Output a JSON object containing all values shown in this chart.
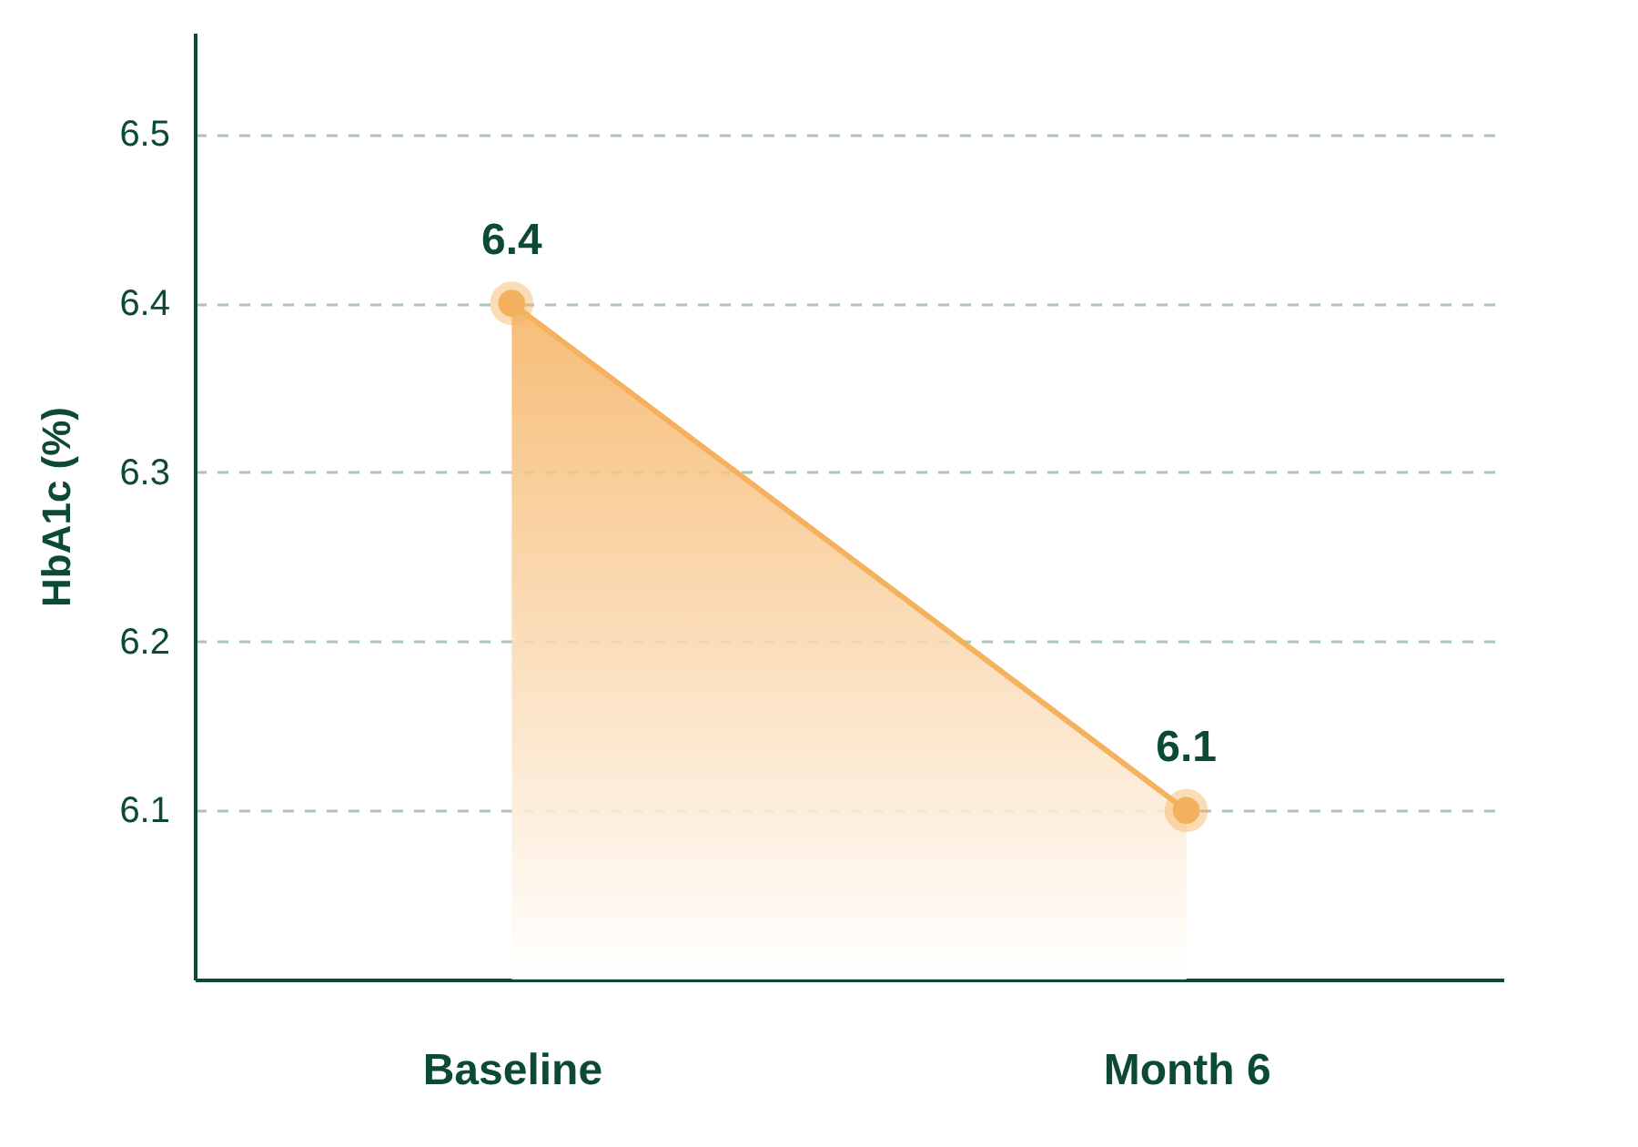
{
  "chart_data": {
    "type": "area",
    "ylabel": "HbA1c  (%)",
    "categories": [
      "Baseline",
      "Month 6"
    ],
    "series": [
      {
        "color": "#f5b15e",
        "values": [
          6.4,
          6.1
        ]
      }
    ],
    "ylim": [
      6.0,
      6.56
    ],
    "yticks": [
      6.1,
      6.2,
      6.3,
      6.4,
      6.5
    ],
    "grid": "y",
    "marker": "circle",
    "data_labels": true
  }
}
